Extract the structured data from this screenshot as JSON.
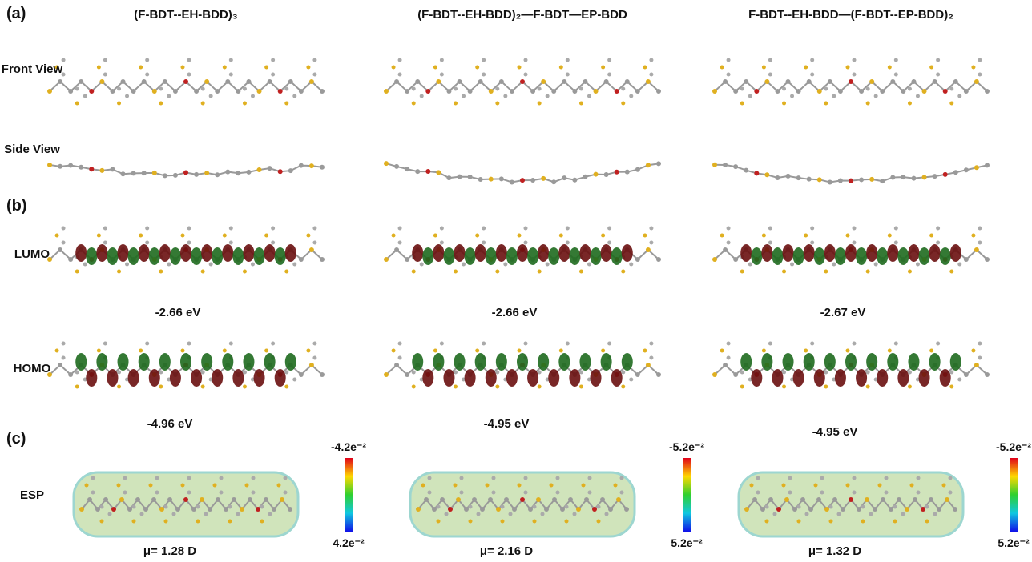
{
  "panel_labels": [
    "(a)",
    "(b)",
    "(c)"
  ],
  "row_labels": {
    "front": "Front View",
    "side": "Side View",
    "lumo": "LUMO",
    "homo": "HOMO",
    "esp": "ESP"
  },
  "columns": [
    {
      "title": "(F-BDT--EH-BDD)₃",
      "lumo": "-2.66 eV",
      "homo": "-4.96 eV",
      "esp_top": "-4.2e⁻²",
      "esp_bottom": "4.2e⁻²",
      "dipole": "μ= 1.28 D"
    },
    {
      "title": "(F-BDT--EH-BDD)₂—F-BDT—EP-BDD",
      "lumo": "-2.66 eV",
      "homo": "-4.95 eV",
      "esp_top": "-5.2e⁻²",
      "esp_bottom": "5.2e⁻²",
      "dipole": "μ= 2.16 D"
    },
    {
      "title": "F-BDT--EH-BDD—(F-BDT--EP-BDD)₂",
      "lumo": "-2.67 eV",
      "homo": "-4.95 eV",
      "esp_top": "-5.2e⁻²",
      "esp_bottom": "5.2e⁻²",
      "dipole": "μ= 1.32 D"
    }
  ]
}
